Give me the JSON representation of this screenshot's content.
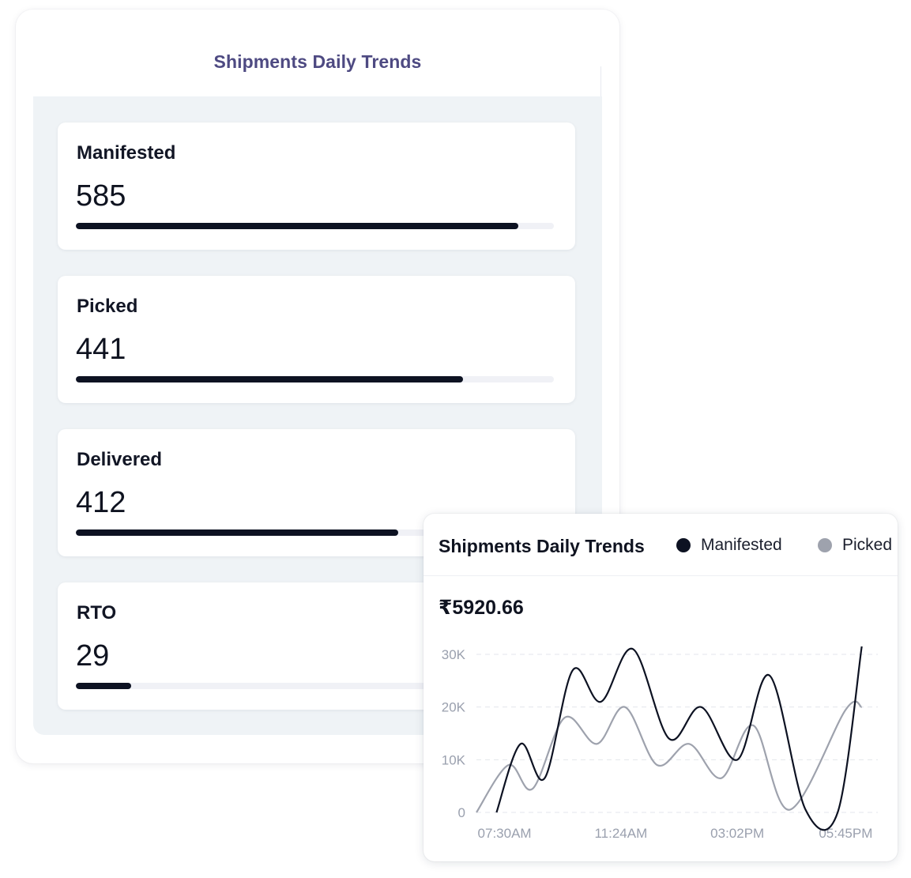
{
  "overview": {
    "title": "Shipments Daily Trends",
    "cards": [
      {
        "label": "Manifested",
        "value": "585",
        "progress": 0.925
      },
      {
        "label": "Picked",
        "value": "441",
        "progress": 0.81
      },
      {
        "label": "Delivered",
        "value": "412",
        "progress": 0.675
      },
      {
        "label": "RTO",
        "value": "29",
        "progress": 0.115
      }
    ]
  },
  "trend_panel": {
    "title": "Shipments Daily Trends",
    "amount": "₹5920.66",
    "legend": [
      {
        "label": "Manifested",
        "color": "#0d1222"
      },
      {
        "label": "Picked",
        "color": "#9ea2ad"
      }
    ]
  },
  "chart_data": {
    "type": "line",
    "title": "Shipments Daily Trends",
    "xlabel": "",
    "ylabel": "",
    "ylim": [
      0,
      30000
    ],
    "yticks": [
      "30K",
      "20K",
      "10K",
      "0"
    ],
    "xticks": [
      "07:30AM",
      "11:24AM",
      "03:02PM",
      "05:45PM"
    ],
    "grid": true,
    "legend_position": "top",
    "series": [
      {
        "name": "Manifested",
        "color": "#0d1222",
        "points": [
          [
            0.05,
            0
          ],
          [
            0.11,
            13000
          ],
          [
            0.17,
            6500
          ],
          [
            0.24,
            27000
          ],
          [
            0.31,
            21000
          ],
          [
            0.39,
            31000
          ],
          [
            0.48,
            14000
          ],
          [
            0.56,
            20000
          ],
          [
            0.65,
            10000
          ],
          [
            0.73,
            26000
          ],
          [
            0.82,
            500
          ],
          [
            0.9,
            0.5
          ],
          [
            0.96,
            31500
          ]
        ]
      },
      {
        "name": "Picked",
        "color": "#9ea2ad",
        "points": [
          [
            0,
            0
          ],
          [
            0.08,
            9000
          ],
          [
            0.14,
            4500
          ],
          [
            0.22,
            18000
          ],
          [
            0.3,
            13000
          ],
          [
            0.37,
            20000
          ],
          [
            0.45,
            9000
          ],
          [
            0.53,
            13000
          ],
          [
            0.61,
            6500
          ],
          [
            0.69,
            16500
          ],
          [
            0.78,
            500
          ],
          [
            0.92,
            19500
          ],
          [
            0.96,
            20000
          ]
        ]
      }
    ]
  }
}
